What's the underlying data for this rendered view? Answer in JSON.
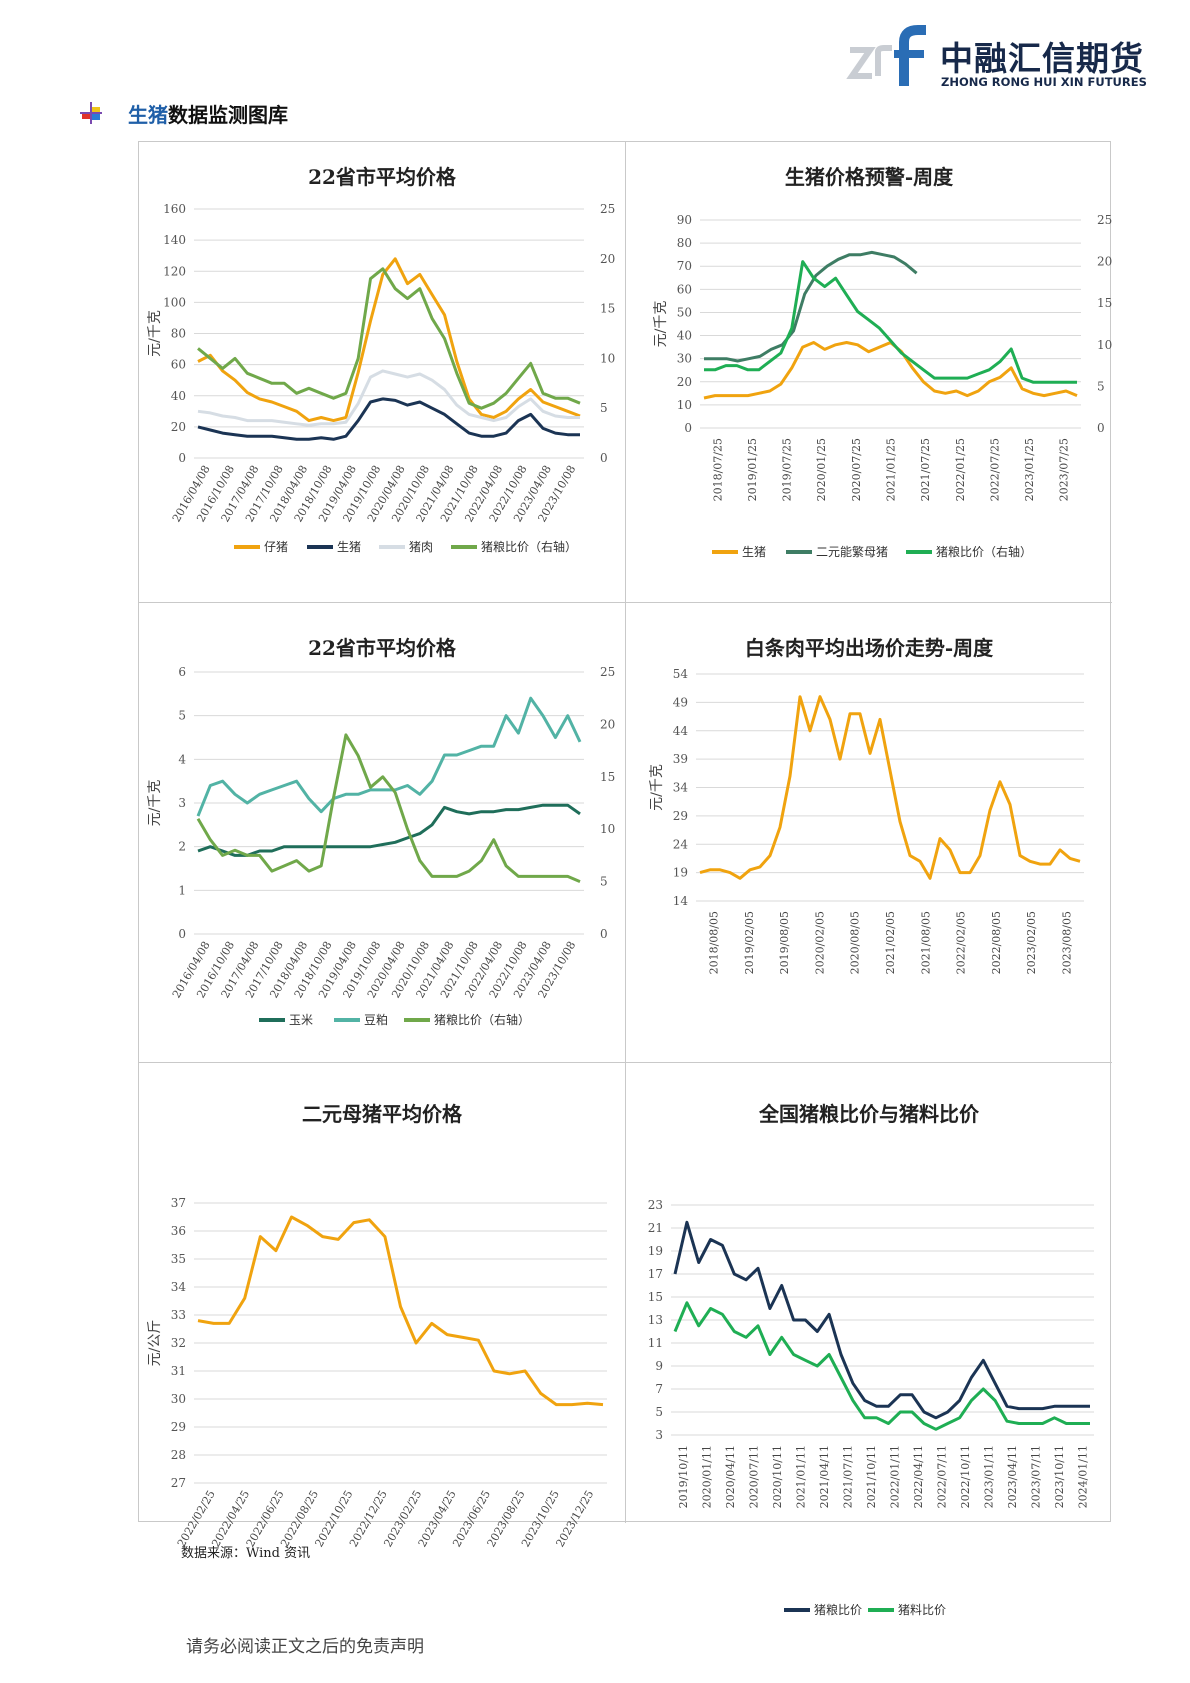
{
  "header": {
    "logo_cn": "中融汇信期货",
    "logo_en": "ZHONG RONG HUI XIN FUTURES",
    "section_title_part1": "生猪",
    "section_title_part2": "数据监测图库"
  },
  "source_note": "数据来源：Wind 资讯",
  "footer_note": "请务必阅读正文之后的免责声明",
  "colors": {
    "orange": "#f0a30f",
    "navy": "#1b3454",
    "light": "#d6dde4",
    "olive": "#70a84a",
    "teal": "#3e7d64",
    "green": "#1fae54",
    "mint": "#52b3a5",
    "corn": "#1f6e5a"
  },
  "chart_data": [
    {
      "id": "c1",
      "type": "line",
      "title": "22省市平均价格",
      "ylabel": "元/千克",
      "ylim": [
        0,
        160
      ],
      "yticks": [
        0,
        20,
        40,
        60,
        80,
        100,
        120,
        140,
        160
      ],
      "y2lim": [
        0,
        25
      ],
      "y2ticks": [
        0,
        5,
        10,
        15,
        20,
        25
      ],
      "xlabels": [
        "2016/04/08",
        "2016/10/08",
        "2017/04/08",
        "2017/10/08",
        "2018/04/08",
        "2018/10/08",
        "2019/04/08",
        "2019/10/08",
        "2020/04/08",
        "2020/10/08",
        "2021/04/08",
        "2021/10/08",
        "2022/04/08",
        "2022/10/08",
        "2023/04/08",
        "2023/10/08"
      ],
      "legend": [
        "仔猪",
        "生猪",
        "猪肉",
        "猪粮比价（右轴）"
      ],
      "series": [
        {
          "name": "仔猪",
          "color": "#f0a30f",
          "axis": "left",
          "values": [
            62,
            66,
            56,
            50,
            42,
            38,
            36,
            33,
            30,
            24,
            26,
            24,
            26,
            55,
            88,
            118,
            128,
            112,
            118,
            105,
            92,
            62,
            38,
            28,
            26,
            30,
            38,
            44,
            36,
            33,
            30,
            27
          ]
        },
        {
          "name": "生猪",
          "color": "#1b3454",
          "axis": "left",
          "values": [
            20,
            18,
            16,
            15,
            14,
            14,
            14,
            13,
            12,
            12,
            13,
            12,
            14,
            24,
            36,
            38,
            37,
            34,
            36,
            32,
            28,
            22,
            16,
            14,
            14,
            16,
            24,
            28,
            19,
            16,
            15,
            15
          ]
        },
        {
          "name": "猪肉",
          "color": "#d6dde4",
          "axis": "left",
          "values": [
            30,
            29,
            27,
            26,
            24,
            24,
            24,
            23,
            22,
            21,
            22,
            22,
            23,
            35,
            52,
            56,
            54,
            52,
            54,
            50,
            44,
            34,
            28,
            26,
            24,
            26,
            33,
            38,
            30,
            27,
            26,
            26
          ]
        },
        {
          "name": "猪粮比价（右轴）",
          "color": "#70a84a",
          "axis": "right",
          "values": [
            11,
            10,
            9,
            10,
            8.5,
            8,
            7.5,
            7.5,
            6.5,
            7,
            6.5,
            6,
            6.5,
            10,
            18,
            19,
            17,
            16,
            17,
            14,
            12,
            8.5,
            5.5,
            5,
            5.5,
            6.5,
            8,
            9.5,
            6.5,
            6,
            6,
            5.5
          ]
        }
      ]
    },
    {
      "id": "c2",
      "type": "line",
      "title": "生猪价格预警-周度",
      "ylabel": "元/千克",
      "ylim": [
        0,
        90
      ],
      "yticks": [
        0,
        10,
        20,
        30,
        40,
        50,
        60,
        70,
        80,
        90
      ],
      "y2lim": [
        0,
        25
      ],
      "y2ticks": [
        0,
        5,
        10,
        15,
        20,
        25
      ],
      "xlabels": [
        "2018/07/25",
        "2019/01/25",
        "2019/07/25",
        "2020/01/25",
        "2020/07/25",
        "2021/01/25",
        "2021/07/25",
        "2022/01/25",
        "2022/07/25",
        "2023/01/25",
        "2023/07/25"
      ],
      "legend": [
        "生猪",
        "二元能繁母猪",
        "猪粮比价（右轴）"
      ],
      "series": [
        {
          "name": "生猪",
          "color": "#f0a30f",
          "axis": "left",
          "values": [
            13,
            14,
            14,
            14,
            14,
            15,
            16,
            19,
            26,
            35,
            37,
            34,
            36,
            37,
            36,
            33,
            35,
            37,
            33,
            26,
            20,
            16,
            15,
            16,
            14,
            16,
            20,
            22,
            26,
            17,
            15,
            14,
            15,
            16,
            14
          ]
        },
        {
          "name": "二元能繁母猪",
          "color": "#3e7d64",
          "axis": "left",
          "values": [
            30,
            30,
            30,
            29,
            30,
            31,
            34,
            36,
            42,
            58,
            66,
            70,
            73,
            75,
            75,
            76,
            75,
            74,
            71,
            67
          ]
        },
        {
          "name": "猪粮比价（右轴）",
          "color": "#1fae54",
          "axis": "right",
          "values": [
            7,
            7,
            7.5,
            7.5,
            7,
            7,
            8,
            9,
            12,
            20,
            18,
            17,
            18,
            16,
            14,
            13,
            12,
            10.5,
            9,
            8,
            7,
            6,
            6,
            6,
            6,
            6.5,
            7,
            8,
            9.5,
            6,
            5.5,
            5.5,
            5.5,
            5.5,
            5.5
          ]
        }
      ]
    },
    {
      "id": "c3",
      "type": "line",
      "title": "22省市平均价格",
      "ylabel": "元/千克",
      "ylim": [
        0,
        6
      ],
      "yticks": [
        0,
        1,
        2,
        3,
        4,
        5,
        6
      ],
      "y2lim": [
        0,
        25
      ],
      "y2ticks": [
        0,
        5,
        10,
        15,
        20,
        25
      ],
      "xlabels": [
        "2016/04/08",
        "2016/10/08",
        "2017/04/08",
        "2017/10/08",
        "2018/04/08",
        "2018/10/08",
        "2019/04/08",
        "2019/10/08",
        "2020/04/08",
        "2020/10/08",
        "2021/04/08",
        "2021/10/08",
        "2022/04/08",
        "2022/10/08",
        "2023/04/08",
        "2023/10/08"
      ],
      "legend": [
        "玉米",
        "豆粕",
        "猪粮比价（右轴）"
      ],
      "series": [
        {
          "name": "玉米",
          "color": "#1f6e5a",
          "axis": "left",
          "values": [
            1.9,
            2.0,
            1.9,
            1.8,
            1.8,
            1.9,
            1.9,
            2.0,
            2.0,
            2.0,
            2.0,
            2.0,
            2.0,
            2.0,
            2.0,
            2.05,
            2.1,
            2.2,
            2.3,
            2.5,
            2.9,
            2.8,
            2.75,
            2.8,
            2.8,
            2.85,
            2.85,
            2.9,
            2.95,
            2.95,
            2.95,
            2.75
          ]
        },
        {
          "name": "豆粕",
          "color": "#52b3a5",
          "axis": "left",
          "values": [
            2.7,
            3.4,
            3.5,
            3.2,
            3.0,
            3.2,
            3.3,
            3.4,
            3.5,
            3.1,
            2.8,
            3.1,
            3.2,
            3.2,
            3.3,
            3.3,
            3.3,
            3.4,
            3.2,
            3.5,
            4.1,
            4.1,
            4.2,
            4.3,
            4.3,
            5.0,
            4.6,
            5.4,
            5.0,
            4.5,
            5.0,
            4.4
          ]
        },
        {
          "name": "猪粮比价（右轴）",
          "color": "#70a84a",
          "axis": "right",
          "values": [
            11,
            9,
            7.5,
            8,
            7.5,
            7.5,
            6,
            6.5,
            7,
            6,
            6.5,
            13,
            19,
            17,
            14,
            15,
            13.5,
            10,
            7,
            5.5,
            5.5,
            5.5,
            6,
            7,
            9,
            6.5,
            5.5,
            5.5,
            5.5,
            5.5,
            5.5,
            5
          ]
        }
      ]
    },
    {
      "id": "c4",
      "type": "line",
      "title": "白条肉平均出场价走势-周度",
      "ylabel": "元/千克",
      "ylim": [
        14,
        54
      ],
      "yticks": [
        14,
        19,
        24,
        29,
        34,
        39,
        44,
        49,
        54
      ],
      "xlabels": [
        "2018/08/05",
        "2019/02/05",
        "2019/08/05",
        "2020/02/05",
        "2020/08/05",
        "2021/02/05",
        "2021/08/05",
        "2022/02/05",
        "2022/08/05",
        "2023/02/05",
        "2023/08/05"
      ],
      "series": [
        {
          "name": "白条肉",
          "color": "#f0a30f",
          "axis": "left",
          "values": [
            19,
            19.5,
            19.5,
            19,
            18,
            19.5,
            20,
            22,
            27,
            36,
            50,
            44,
            50,
            46,
            39,
            47,
            47,
            40,
            46,
            37,
            28,
            22,
            21,
            18,
            25,
            23,
            19,
            19,
            22,
            30,
            35,
            31,
            22,
            21,
            20.5,
            20.5,
            23,
            21.5,
            21
          ]
        }
      ]
    },
    {
      "id": "c5",
      "type": "line",
      "title": "二元母猪平均价格",
      "ylabel": "元/公斤",
      "ylim": [
        27,
        37
      ],
      "yticks": [
        27,
        28,
        29,
        30,
        31,
        32,
        33,
        34,
        35,
        36,
        37
      ],
      "xlabels": [
        "2022/02/25",
        "2022/04/25",
        "2022/06/25",
        "2022/08/25",
        "2022/10/25",
        "2022/12/25",
        "2023/02/25",
        "2023/04/25",
        "2023/06/25",
        "2023/08/25",
        "2023/10/25",
        "2023/12/25"
      ],
      "series": [
        {
          "name": "二元母猪",
          "color": "#f0a30f",
          "axis": "left",
          "values": [
            32.8,
            32.7,
            32.7,
            33.6,
            35.8,
            35.3,
            36.5,
            36.2,
            35.8,
            35.7,
            36.3,
            36.4,
            35.8,
            33.3,
            32.0,
            32.7,
            32.3,
            32.2,
            32.1,
            31.0,
            30.9,
            31.0,
            30.2,
            29.8,
            29.8,
            29.85,
            29.8
          ]
        }
      ]
    },
    {
      "id": "c6",
      "type": "line",
      "title": "全国猪粮比价与猪料比价",
      "ylim": [
        3,
        23
      ],
      "yticks": [
        3,
        5,
        7,
        9,
        11,
        13,
        15,
        17,
        19,
        21,
        23
      ],
      "xlabels": [
        "2019/10/11",
        "2020/01/11",
        "2020/04/11",
        "2020/07/11",
        "2020/10/11",
        "2021/01/11",
        "2021/04/11",
        "2021/07/11",
        "2021/10/11",
        "2022/01/11",
        "2022/04/11",
        "2022/07/11",
        "2022/10/11",
        "2023/01/11",
        "2023/04/11",
        "2023/07/11",
        "2023/10/11",
        "2024/01/11"
      ],
      "legend": [
        "猪粮比价",
        "猪料比价"
      ],
      "series": [
        {
          "name": "猪粮比价",
          "color": "#1b3454",
          "axis": "left",
          "values": [
            17,
            21.5,
            18,
            20,
            19.5,
            17,
            16.5,
            17.5,
            14,
            16,
            13,
            13,
            12,
            13.5,
            10,
            7.5,
            6,
            5.5,
            5.5,
            6.5,
            6.5,
            5,
            4.5,
            5,
            6,
            8,
            9.5,
            7.5,
            5.5,
            5.3,
            5.3,
            5.3,
            5.5,
            5.5,
            5.5,
            5.5
          ]
        },
        {
          "name": "猪料比价",
          "color": "#1fae54",
          "axis": "left",
          "values": [
            12,
            14.5,
            12.5,
            14,
            13.5,
            12,
            11.5,
            12.5,
            10,
            11.5,
            10,
            9.5,
            9,
            10,
            8,
            6,
            4.5,
            4.5,
            4,
            5,
            5,
            4,
            3.5,
            4,
            4.5,
            6,
            7,
            6,
            4.2,
            4,
            4,
            4,
            4.5,
            4,
            4,
            4
          ]
        }
      ]
    }
  ]
}
